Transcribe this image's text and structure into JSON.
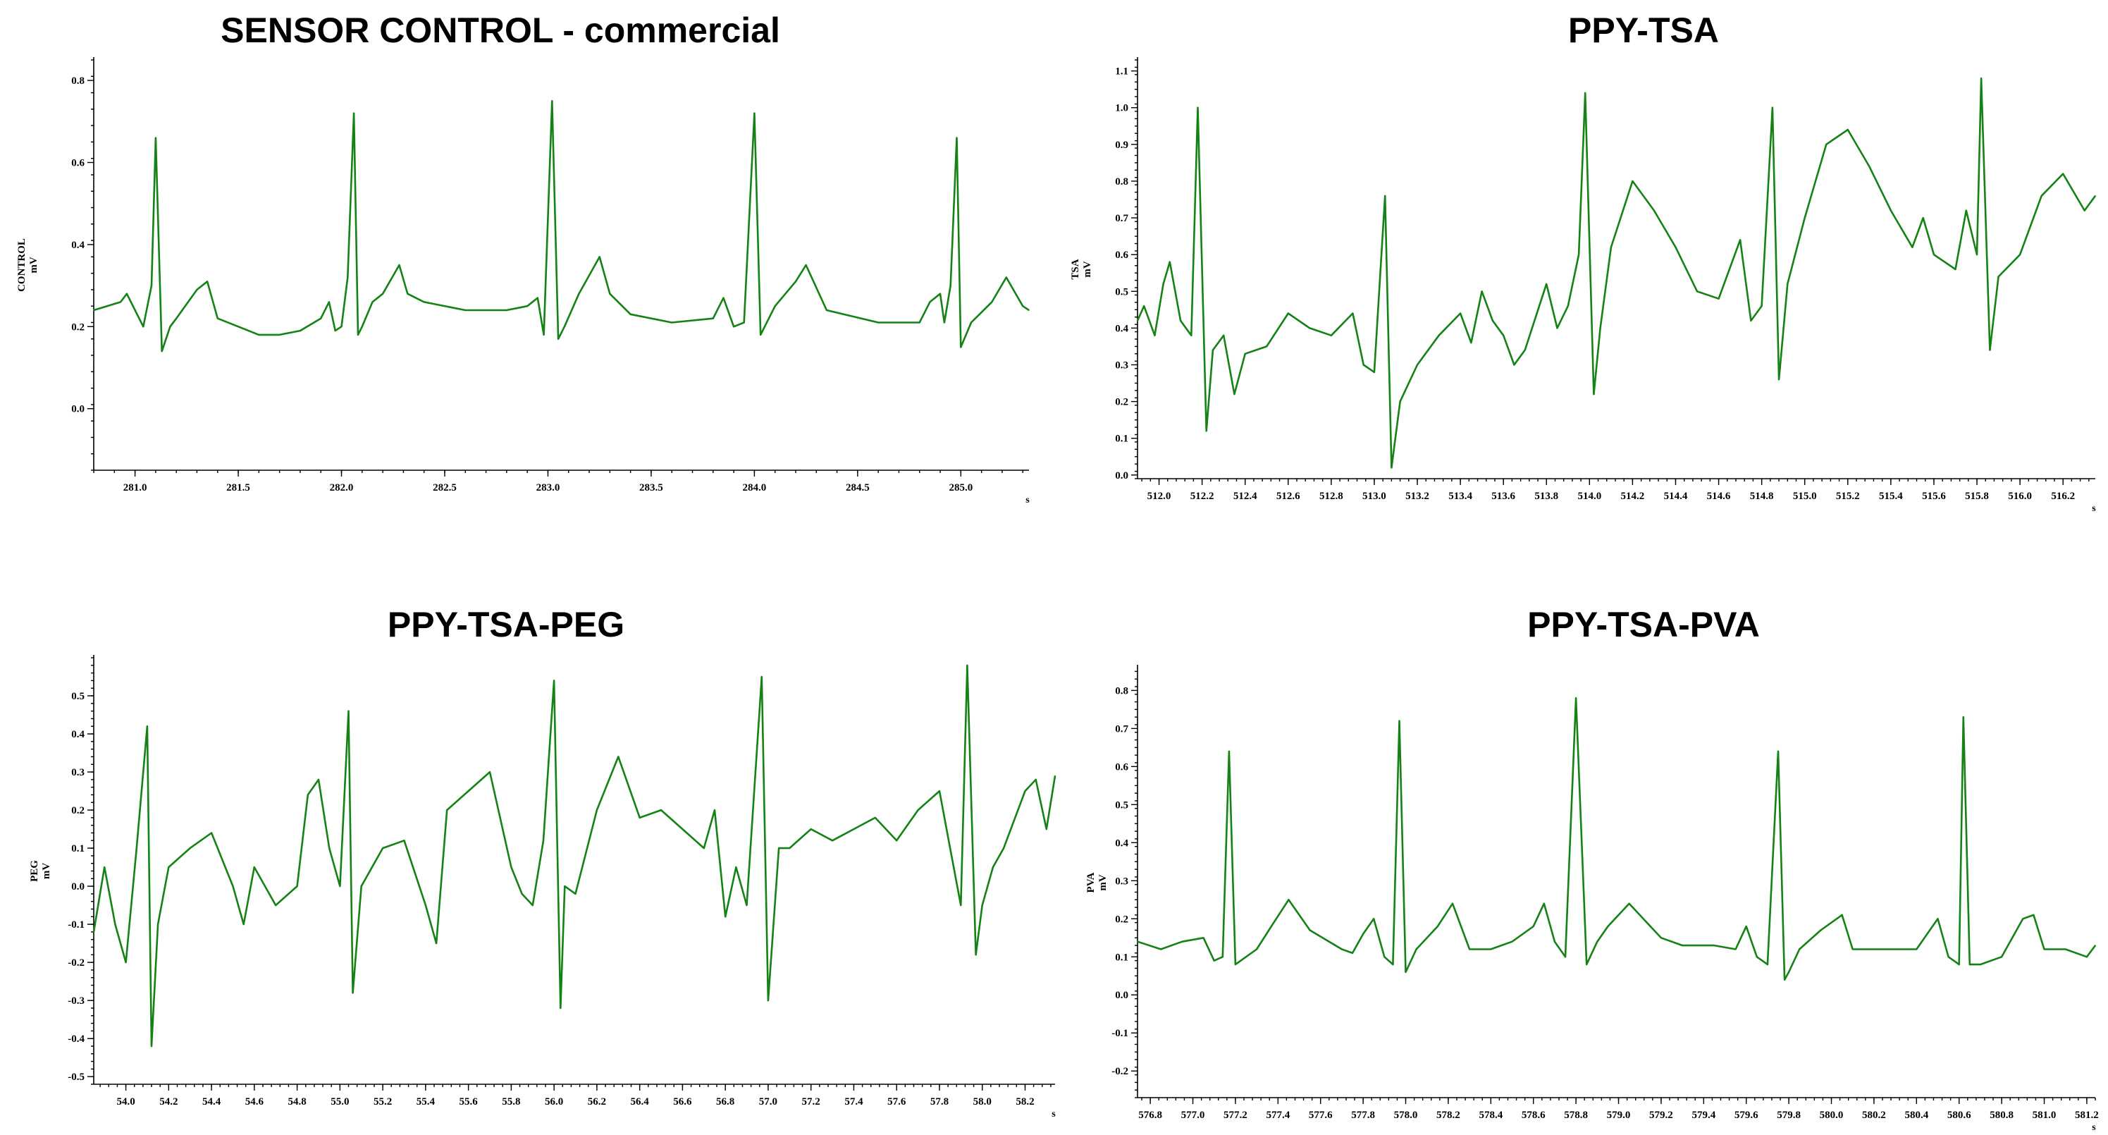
{
  "chart_data": [
    {
      "type": "line",
      "title": "SENSOR CONTROL - commercial",
      "ylabel": [
        "CONTROL",
        "mV"
      ],
      "xunit": "s",
      "xlim": [
        280.8,
        285.33
      ],
      "ylim": [
        -0.15,
        0.85
      ],
      "xticks": [
        281.0,
        281.5,
        282.0,
        282.5,
        283.0,
        283.5,
        284.0,
        284.5,
        285.0
      ],
      "xtick_labels": [
        "281.0",
        "281.5",
        "282.0",
        "282.5",
        "283.0",
        "283.5",
        "284.0",
        "284.5",
        "285.0"
      ],
      "yticks": [
        0.0,
        0.2,
        0.4,
        0.6,
        0.8
      ],
      "ytick_labels": [
        "0.0",
        "0.2",
        "0.4",
        "0.6",
        "0.8"
      ],
      "color": "#148214",
      "series": [
        {
          "x": [
            280.8,
            280.93,
            280.96,
            281.0,
            281.04,
            281.08,
            281.1,
            281.13,
            281.17,
            281.2,
            281.3,
            281.35,
            281.4,
            281.5,
            281.6,
            281.7,
            281.8,
            281.9,
            281.94,
            281.97,
            282.0,
            282.03,
            282.06,
            282.08,
            282.1,
            282.15,
            282.2,
            282.28,
            282.32,
            282.4,
            282.6,
            282.8,
            282.9,
            282.95,
            282.98,
            283.02,
            283.05,
            283.08,
            283.15,
            283.25,
            283.3,
            283.4,
            283.6,
            283.8,
            283.85,
            283.9,
            283.95,
            284.0,
            284.03,
            284.05,
            284.1,
            284.2,
            284.25,
            284.35,
            284.6,
            284.8,
            284.85,
            284.9,
            284.92,
            284.95,
            284.98,
            285.0,
            285.05,
            285.15,
            285.22,
            285.3,
            285.33
          ],
          "values": [
            0.24,
            0.26,
            0.28,
            0.24,
            0.2,
            0.3,
            0.66,
            0.14,
            0.2,
            0.22,
            0.29,
            0.31,
            0.22,
            0.2,
            0.18,
            0.18,
            0.19,
            0.22,
            0.26,
            0.19,
            0.2,
            0.32,
            0.72,
            0.18,
            0.2,
            0.26,
            0.28,
            0.35,
            0.28,
            0.26,
            0.24,
            0.24,
            0.25,
            0.27,
            0.18,
            0.75,
            0.17,
            0.2,
            0.28,
            0.37,
            0.28,
            0.23,
            0.21,
            0.22,
            0.27,
            0.2,
            0.21,
            0.72,
            0.18,
            0.2,
            0.25,
            0.31,
            0.35,
            0.24,
            0.21,
            0.21,
            0.26,
            0.28,
            0.21,
            0.3,
            0.66,
            0.15,
            0.21,
            0.26,
            0.32,
            0.25,
            0.24
          ]
        }
      ]
    },
    {
      "type": "line",
      "title": "PPY-TSA",
      "ylabel": [
        "TSA",
        "mV"
      ],
      "xunit": "s",
      "xlim": [
        511.9,
        516.35
      ],
      "ylim": [
        -0.01,
        1.13
      ],
      "xticks": [
        512.0,
        512.2,
        512.4,
        512.6,
        512.8,
        513.0,
        513.2,
        513.4,
        513.6,
        513.8,
        514.0,
        514.2,
        514.4,
        514.6,
        514.8,
        515.0,
        515.2,
        515.4,
        515.6,
        515.8,
        516.0,
        516.2
      ],
      "xtick_labels": [
        "512.0",
        "512.2",
        "512.4",
        "512.6",
        "512.8",
        "513.0",
        "513.2",
        "513.4",
        "513.6",
        "513.8",
        "514.0",
        "514.2",
        "514.4",
        "514.6",
        "514.8",
        "515.0",
        "515.2",
        "515.4",
        "515.6",
        "515.8",
        "516.0",
        "516.2"
      ],
      "yticks": [
        0.0,
        0.1,
        0.2,
        0.3,
        0.4,
        0.5,
        0.6,
        0.7,
        0.8,
        0.9,
        1.0,
        1.1
      ],
      "ytick_labels": [
        "0.0",
        "0.1",
        "0.2",
        "0.3",
        "0.4",
        "0.5",
        "0.6",
        "0.7",
        "0.8",
        "0.9",
        "1.0",
        "1.1"
      ],
      "color": "#148214",
      "series": [
        {
          "x": [
            511.9,
            511.93,
            511.98,
            512.02,
            512.05,
            512.1,
            512.15,
            512.18,
            512.22,
            512.25,
            512.3,
            512.35,
            512.4,
            512.5,
            512.6,
            512.7,
            512.8,
            512.9,
            512.95,
            513.0,
            513.05,
            513.08,
            513.12,
            513.2,
            513.3,
            513.4,
            513.45,
            513.5,
            513.55,
            513.6,
            513.65,
            513.7,
            513.8,
            513.85,
            513.9,
            513.95,
            513.98,
            514.02,
            514.05,
            514.1,
            514.2,
            514.3,
            514.4,
            514.5,
            514.6,
            514.7,
            514.75,
            514.8,
            514.85,
            514.88,
            514.92,
            515.0,
            515.1,
            515.2,
            515.3,
            515.4,
            515.5,
            515.55,
            515.6,
            515.7,
            515.75,
            515.8,
            515.82,
            515.86,
            515.9,
            516.0,
            516.1,
            516.2,
            516.3,
            516.35
          ],
          "values": [
            0.42,
            0.46,
            0.38,
            0.52,
            0.58,
            0.42,
            0.38,
            1.0,
            0.12,
            0.34,
            0.38,
            0.22,
            0.33,
            0.35,
            0.44,
            0.4,
            0.38,
            0.44,
            0.3,
            0.28,
            0.76,
            0.02,
            0.2,
            0.3,
            0.38,
            0.44,
            0.36,
            0.5,
            0.42,
            0.38,
            0.3,
            0.34,
            0.52,
            0.4,
            0.46,
            0.6,
            1.04,
            0.22,
            0.4,
            0.62,
            0.8,
            0.72,
            0.62,
            0.5,
            0.48,
            0.64,
            0.42,
            0.46,
            1.0,
            0.26,
            0.52,
            0.7,
            0.9,
            0.94,
            0.84,
            0.72,
            0.62,
            0.7,
            0.6,
            0.56,
            0.72,
            0.6,
            1.08,
            0.34,
            0.54,
            0.6,
            0.76,
            0.82,
            0.72,
            0.76
          ]
        }
      ]
    },
    {
      "type": "line",
      "title": "PPY-TSA-PEG",
      "ylabel": [
        "PEG",
        "mV"
      ],
      "xunit": "s",
      "xlim": [
        53.85,
        58.34
      ],
      "ylim": [
        -0.52,
        0.6
      ],
      "xticks": [
        54.0,
        54.2,
        54.4,
        54.6,
        54.8,
        55.0,
        55.2,
        55.4,
        55.6,
        55.8,
        56.0,
        56.2,
        56.4,
        56.6,
        56.8,
        57.0,
        57.2,
        57.4,
        57.6,
        57.8,
        58.0,
        58.2
      ],
      "xtick_labels": [
        "54.0",
        "54.2",
        "54.4",
        "54.6",
        "54.8",
        "55.0",
        "55.2",
        "55.4",
        "55.6",
        "55.8",
        "56.0",
        "56.2",
        "56.4",
        "56.6",
        "56.8",
        "57.0",
        "57.2",
        "57.4",
        "57.6",
        "57.8",
        "58.0",
        "58.2"
      ],
      "yticks": [
        -0.5,
        -0.4,
        -0.3,
        -0.2,
        -0.1,
        0.0,
        0.1,
        0.2,
        0.3,
        0.4,
        0.5
      ],
      "ytick_labels": [
        "-0.5",
        "-0.4",
        "-0.3",
        "-0.2",
        "-0.1",
        "0.0",
        "0.1",
        "0.2",
        "0.3",
        "0.4",
        "0.5"
      ],
      "color": "#148214",
      "series": [
        {
          "x": [
            53.85,
            53.9,
            53.95,
            54.0,
            54.05,
            54.1,
            54.12,
            54.15,
            54.2,
            54.3,
            54.4,
            54.5,
            54.55,
            54.6,
            54.7,
            54.8,
            54.85,
            54.9,
            54.95,
            55.0,
            55.04,
            55.06,
            55.1,
            55.2,
            55.3,
            55.4,
            55.45,
            55.5,
            55.6,
            55.7,
            55.8,
            55.85,
            55.9,
            55.95,
            56.0,
            56.03,
            56.05,
            56.1,
            56.2,
            56.3,
            56.4,
            56.5,
            56.6,
            56.7,
            56.75,
            56.8,
            56.85,
            56.9,
            56.97,
            57.0,
            57.05,
            57.1,
            57.2,
            57.3,
            57.4,
            57.5,
            57.6,
            57.7,
            57.8,
            57.85,
            57.9,
            57.93,
            57.97,
            58.0,
            58.05,
            58.1,
            58.2,
            58.25,
            58.3,
            58.34
          ],
          "values": [
            -0.12,
            0.05,
            -0.1,
            -0.2,
            0.1,
            0.42,
            -0.42,
            -0.1,
            0.05,
            0.1,
            0.14,
            0.0,
            -0.1,
            0.05,
            -0.05,
            0.0,
            0.24,
            0.28,
            0.1,
            0.0,
            0.46,
            -0.28,
            0.0,
            0.1,
            0.12,
            -0.05,
            -0.15,
            0.2,
            0.25,
            0.3,
            0.05,
            -0.02,
            -0.05,
            0.12,
            0.54,
            -0.32,
            0.0,
            -0.02,
            0.2,
            0.34,
            0.18,
            0.2,
            0.15,
            0.1,
            0.2,
            -0.08,
            0.05,
            -0.05,
            0.55,
            -0.3,
            0.1,
            0.1,
            0.15,
            0.12,
            0.15,
            0.18,
            0.12,
            0.2,
            0.25,
            0.1,
            -0.05,
            0.58,
            -0.18,
            -0.05,
            0.05,
            0.1,
            0.25,
            0.28,
            0.15,
            0.29
          ]
        }
      ]
    },
    {
      "type": "line",
      "title": "PPY-TSA-PVA",
      "ylabel": [
        "PVA",
        "mV"
      ],
      "xunit": "s",
      "xlim": [
        576.74,
        581.24
      ],
      "ylim": [
        -0.27,
        0.86
      ],
      "xticks": [
        576.8,
        577.0,
        577.2,
        577.4,
        577.6,
        577.8,
        578.0,
        578.2,
        578.4,
        578.6,
        578.8,
        579.0,
        579.2,
        579.4,
        579.6,
        579.8,
        580.0,
        580.2,
        580.4,
        580.6,
        580.8,
        581.0,
        581.2
      ],
      "xtick_labels": [
        "576.8",
        "577.0",
        "577.2",
        "577.4",
        "577.6",
        "577.8",
        "578.0",
        "578.2",
        "578.4",
        "578.6",
        "578.8",
        "579.0",
        "579.2",
        "579.4",
        "579.6",
        "579.8",
        "580.0",
        "580.2",
        "580.4",
        "580.6",
        "580.8",
        "581.0",
        "581.2"
      ],
      "yticks": [
        -0.2,
        -0.1,
        0.0,
        0.1,
        0.2,
        0.3,
        0.4,
        0.5,
        0.6,
        0.7,
        0.8
      ],
      "ytick_labels": [
        "-0.2",
        "-0.1",
        "0.0",
        "0.1",
        "0.2",
        "0.3",
        "0.4",
        "0.5",
        "0.6",
        "0.7",
        "0.8"
      ],
      "color": "#148214",
      "series": [
        {
          "x": [
            576.74,
            576.85,
            576.95,
            577.05,
            577.1,
            577.14,
            577.17,
            577.2,
            577.3,
            577.38,
            577.45,
            577.55,
            577.7,
            577.75,
            577.8,
            577.85,
            577.9,
            577.94,
            577.97,
            578.0,
            578.05,
            578.15,
            578.22,
            578.3,
            578.4,
            578.5,
            578.6,
            578.65,
            578.7,
            578.75,
            578.8,
            578.85,
            578.9,
            578.95,
            579.05,
            579.15,
            579.2,
            579.3,
            579.45,
            579.55,
            579.6,
            579.65,
            579.7,
            579.75,
            579.78,
            579.8,
            579.85,
            579.95,
            580.05,
            580.1,
            580.3,
            580.4,
            580.45,
            580.5,
            580.55,
            580.6,
            580.62,
            580.65,
            580.7,
            580.8,
            580.9,
            580.95,
            581.0,
            581.1,
            581.2,
            581.24
          ],
          "values": [
            0.14,
            0.12,
            0.14,
            0.15,
            0.09,
            0.1,
            0.64,
            0.08,
            0.12,
            0.19,
            0.25,
            0.17,
            0.12,
            0.11,
            0.16,
            0.2,
            0.1,
            0.08,
            0.72,
            0.06,
            0.12,
            0.18,
            0.24,
            0.12,
            0.12,
            0.14,
            0.18,
            0.24,
            0.14,
            0.1,
            0.78,
            0.08,
            0.14,
            0.18,
            0.24,
            0.18,
            0.15,
            0.13,
            0.13,
            0.12,
            0.18,
            0.1,
            0.08,
            0.64,
            0.04,
            0.06,
            0.12,
            0.17,
            0.21,
            0.12,
            0.12,
            0.12,
            0.16,
            0.2,
            0.1,
            0.08,
            0.73,
            0.08,
            0.08,
            0.1,
            0.2,
            0.21,
            0.12,
            0.12,
            0.1,
            0.13
          ]
        }
      ]
    }
  ]
}
